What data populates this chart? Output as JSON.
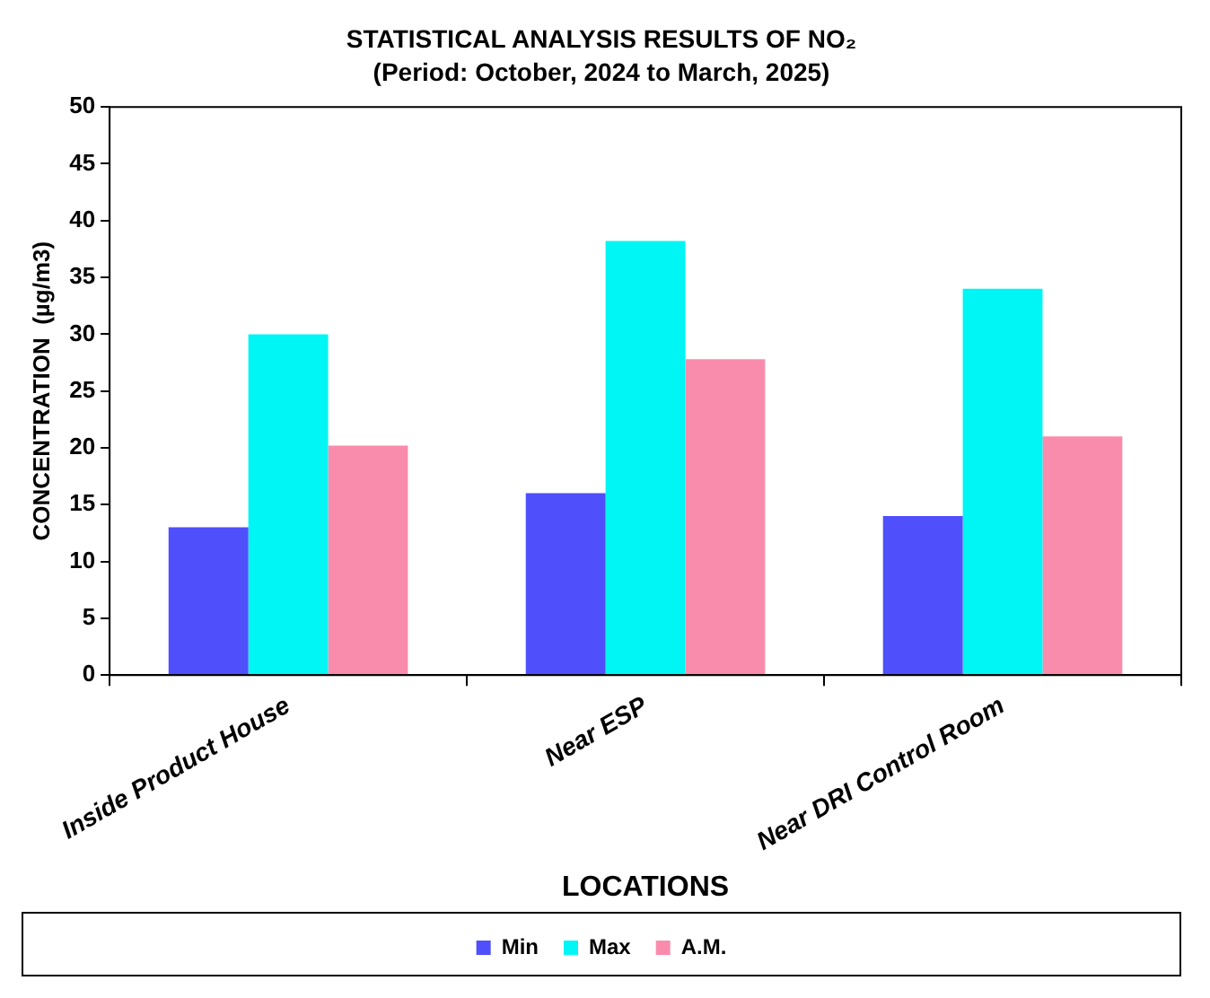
{
  "chart_data": {
    "type": "bar",
    "title": "STATISTICAL ANALYSIS RESULTS OF NO₂",
    "subtitle": "(Period: October, 2024 to March, 2025)",
    "xlabel": "LOCATIONS",
    "ylabel": "CONCENTRATION  (µg/m3)",
    "categories": [
      "Inside Product House",
      "Near ESP",
      "Near DRI Control Room"
    ],
    "series": [
      {
        "name": "Min",
        "color": "#4f4ffc",
        "values": [
          13,
          16,
          14
        ]
      },
      {
        "name": "Max",
        "color": "#00f5f5",
        "values": [
          30,
          38.2,
          34
        ]
      },
      {
        "name": "A.M.",
        "color": "#f98cad",
        "values": [
          20.2,
          27.8,
          21
        ]
      }
    ],
    "ylim": [
      0,
      50
    ],
    "yticks": [
      0,
      5,
      10,
      15,
      20,
      25,
      30,
      35,
      40,
      45,
      50
    ],
    "legend": "bottom"
  }
}
